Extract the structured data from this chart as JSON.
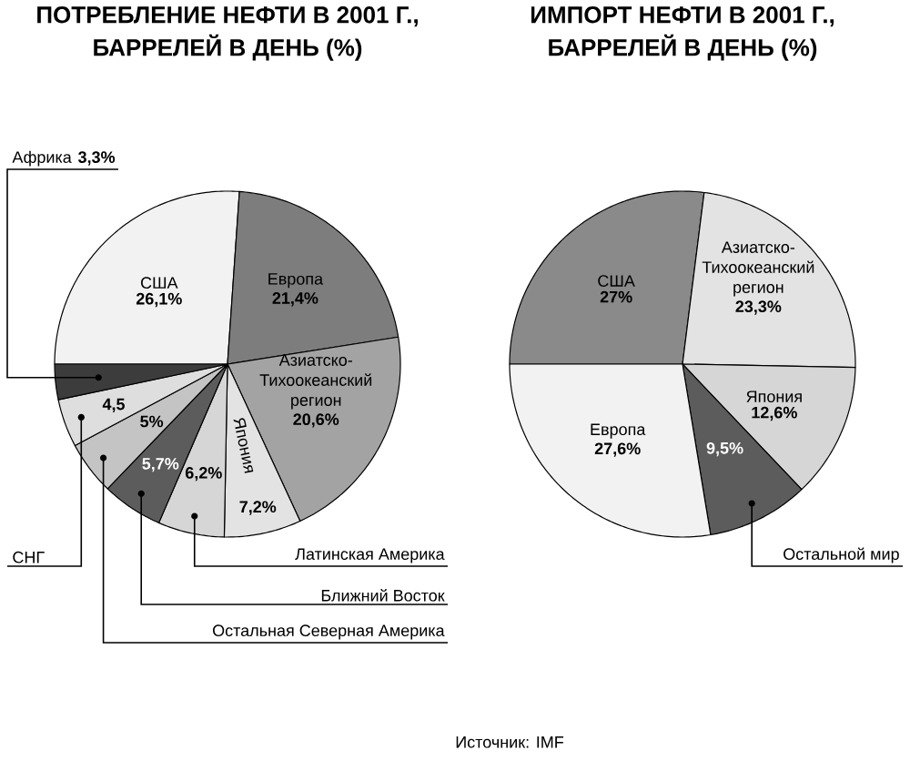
{
  "chart_data": [
    {
      "type": "pie",
      "title": "ПОТРЕБЛЕНИЕ НЕФТИ В 2001 Г., БАРРЕЛЕЙ В ДЕНЬ (%)",
      "categories": [
        "США",
        "Европа",
        "Азиатско-Тихоокеанский регион",
        "Япония",
        "Латинская Америка",
        "Ближний Восток",
        "Остальная Северная Америка",
        "СНГ",
        "Африка"
      ],
      "values": [
        26.1,
        21.4,
        20.6,
        7.2,
        6.2,
        5.7,
        5,
        4.5,
        3.3
      ],
      "value_labels": [
        "26,1%",
        "21,4%",
        "20,6%",
        "7,2%",
        "6,2%",
        "5,7%",
        "5%",
        "4,5",
        "3,3%"
      ],
      "colors": [
        "#f2f2f2",
        "#7d7d7d",
        "#a3a3a3",
        "#e3e3e3",
        "#d6d6d6",
        "#5c5c5c",
        "#c4c4c4",
        "#dedede",
        "#3c3c3c"
      ]
    },
    {
      "type": "pie",
      "title": "ИМПОРТ НЕФТИ В 2001 Г., БАРРЕЛЕЙ В ДЕНЬ (%)",
      "categories": [
        "США",
        "Азиатско-Тихоокеанский регион",
        "Япония",
        "Остальной мир",
        "Европа"
      ],
      "values": [
        27,
        23.3,
        12.6,
        9.5,
        27.6
      ],
      "value_labels": [
        "27%",
        "23,3%",
        "12,6%",
        "9,5%",
        "27,6%"
      ],
      "colors": [
        "#8a8a8a",
        "#e3e3e3",
        "#d6d6d6",
        "#5c5c5c",
        "#f2f2f2"
      ],
      "annotations": [
        "Источник: IMF"
      ]
    }
  ]
}
